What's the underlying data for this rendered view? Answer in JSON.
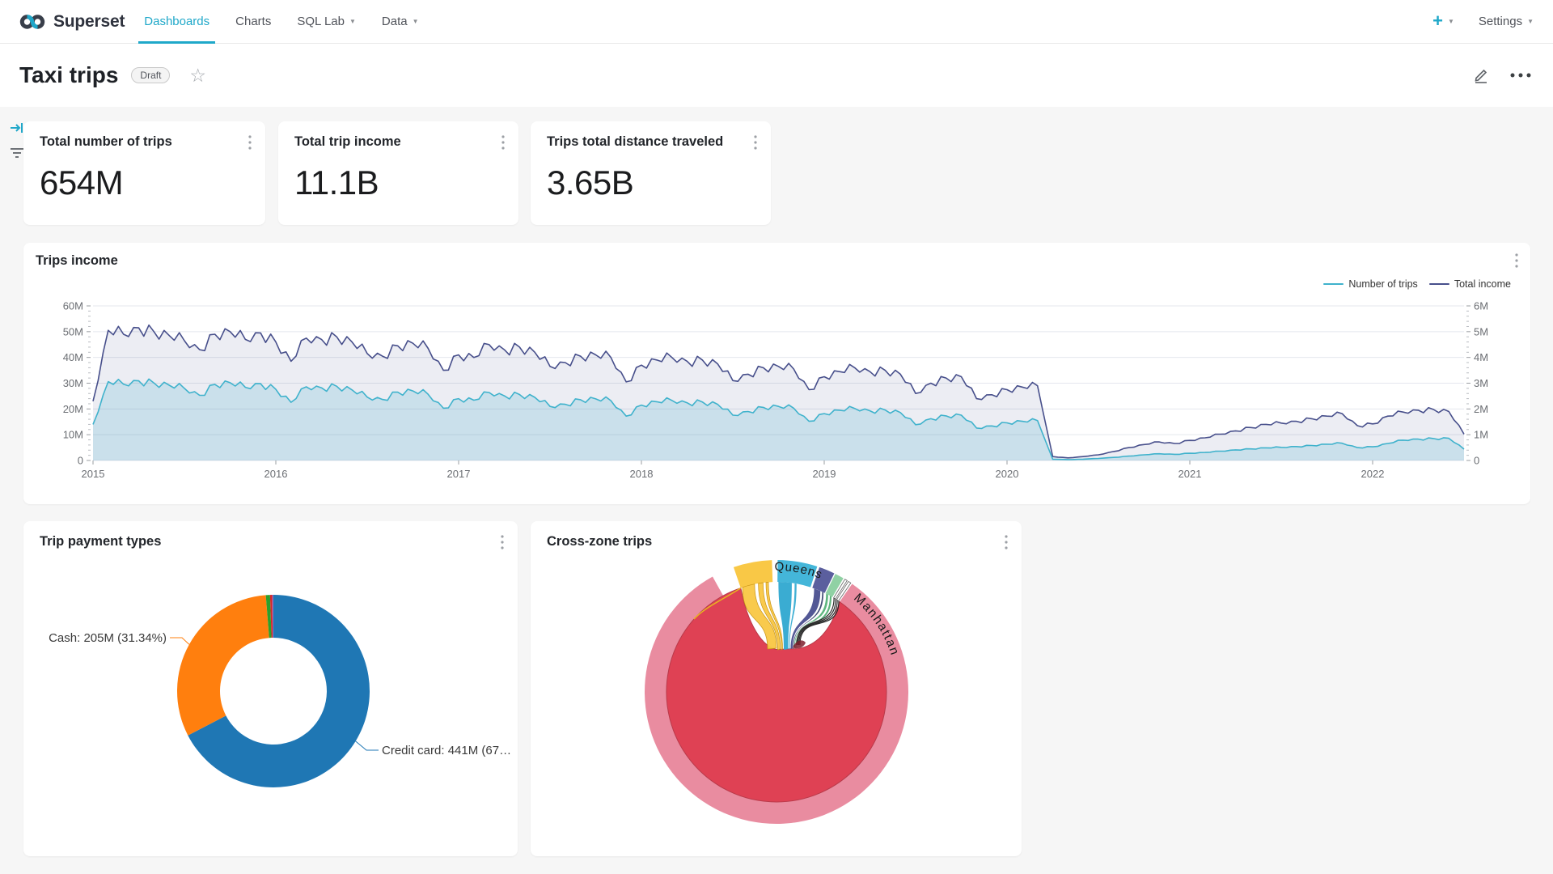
{
  "brand": {
    "name": "Superset",
    "accent": "#20A7C9",
    "logo_dark": "#383E4A"
  },
  "nav": {
    "items": [
      {
        "label": "Dashboards",
        "active": true,
        "caret": false
      },
      {
        "label": "Charts",
        "active": false,
        "caret": false
      },
      {
        "label": "SQL Lab",
        "active": false,
        "caret": true
      },
      {
        "label": "Data",
        "active": false,
        "caret": true
      }
    ],
    "plus_label": "+",
    "settings_label": "Settings"
  },
  "header": {
    "title": "Taxi trips",
    "status_badge": "Draft"
  },
  "kpis": [
    {
      "title": "Total number of trips",
      "value": "654M"
    },
    {
      "title": "Total trip income",
      "value": "11.1B"
    },
    {
      "title": "Trips total distance traveled",
      "value": "3.65B"
    }
  ],
  "trips_income": {
    "title": "Trips income",
    "chart_data": {
      "type": "line",
      "x_start": 2015.0,
      "x_step_months": 1,
      "xticks": [
        "2015",
        "2016",
        "2017",
        "2018",
        "2019",
        "2020",
        "2021",
        "2022"
      ],
      "yticks_left": [
        "0",
        "10M",
        "20M",
        "30M",
        "40M",
        "50M",
        "60M"
      ],
      "yticks_right": [
        "0",
        "1M",
        "2M",
        "3M",
        "4M",
        "5M",
        "6M"
      ],
      "ylim_left": [
        0,
        60
      ],
      "ylim_right": [
        0,
        6
      ],
      "series": [
        {
          "name": "Number of trips",
          "axis": "left",
          "color": "#3FB2CC",
          "fill": "rgba(69,183,209,0.20)",
          "values": [
            14.0,
            30.6,
            29.6,
            30.9,
            30.1,
            29.2,
            28.0,
            25.3,
            29.5,
            30.2,
            28.4,
            29.8,
            27.6,
            22.6,
            28.6,
            28.2,
            28.8,
            27.4,
            24.6,
            23.7,
            26.5,
            27.0,
            25.7,
            20.3,
            24.0,
            23.4,
            26.4,
            25.1,
            25.6,
            24.5,
            21.0,
            21.8,
            23.6,
            23.9,
            23.2,
            17.2,
            21.5,
            22.8,
            23.3,
            22.4,
            22.7,
            21.8,
            17.6,
            19.0,
            20.6,
            21.0,
            20.3,
            15.2,
            18.2,
            19.5,
            20.2,
            19.3,
            19.6,
            18.6,
            13.9,
            16.2,
            17.3,
            17.6,
            12.6,
            13.4,
            14.6,
            15.2,
            15.5,
            0.5,
            0.35,
            0.5,
            0.8,
            1.2,
            1.7,
            2.2,
            2.6,
            2.4,
            2.8,
            3.1,
            3.6,
            4.1,
            4.5,
            4.9,
            5.1,
            5.4,
            5.8,
            6.3,
            6.7,
            5.0,
            5.3,
            6.6,
            7.9,
            8.3,
            8.5,
            8.6,
            4.4
          ]
        },
        {
          "name": "Total income",
          "axis": "right",
          "color": "#474F8B",
          "fill": "rgba(71,79,139,0.10)",
          "values": [
            2.3,
            5.05,
            4.9,
            5.15,
            5.0,
            4.85,
            4.65,
            4.3,
            4.9,
            5.0,
            4.7,
            4.95,
            4.6,
            3.85,
            4.75,
            4.7,
            4.8,
            4.6,
            4.15,
            4.05,
            4.45,
            4.55,
            4.35,
            3.5,
            4.1,
            4.0,
            4.5,
            4.3,
            4.4,
            4.2,
            3.65,
            3.8,
            4.05,
            4.1,
            4.0,
            3.05,
            3.7,
            3.9,
            4.0,
            3.85,
            3.9,
            3.75,
            3.1,
            3.35,
            3.6,
            3.65,
            3.55,
            2.75,
            3.25,
            3.45,
            3.6,
            3.45,
            3.5,
            3.35,
            2.6,
            3.0,
            3.2,
            3.25,
            2.4,
            2.55,
            2.75,
            2.85,
            2.9,
            0.15,
            0.1,
            0.15,
            0.22,
            0.35,
            0.5,
            0.62,
            0.72,
            0.66,
            0.78,
            0.88,
            1.02,
            1.15,
            1.28,
            1.4,
            1.45,
            1.52,
            1.62,
            1.72,
            1.82,
            1.35,
            1.42,
            1.72,
            1.88,
            1.95,
            1.98,
            1.9,
            1.02
          ]
        }
      ]
    }
  },
  "payment": {
    "title": "Trip payment types",
    "chart_data": {
      "type": "pie",
      "slices": [
        {
          "label": "Credit card",
          "pct": 67.4,
          "color": "#1F77B4"
        },
        {
          "label": "Cash",
          "pct": 31.34,
          "color": "#FF7F0E"
        },
        {
          "label": "other-green",
          "pct": 0.7,
          "color": "#2CA02C"
        },
        {
          "label": "other-red",
          "pct": 0.36,
          "color": "#D62728"
        },
        {
          "label": "other-purple",
          "pct": 0.2,
          "color": "#9467BD"
        }
      ],
      "cash_label": "Cash: 205M (31.34%)",
      "credit_label": "Credit card: 441M (67…"
    }
  },
  "crosszone": {
    "title": "Cross-zone trips",
    "chart_data": {
      "type": "chord",
      "self_color": "#DF4154",
      "zones": [
        {
          "label": "Manhattan",
          "color": "#E98CA0",
          "start": 35,
          "end": 331
        },
        {
          "label": "",
          "color": "#F9C846",
          "start": 341,
          "end": 358
        },
        {
          "label": "Queens",
          "color": "#44B6D9",
          "start": 0.5,
          "end": 18
        },
        {
          "label": "",
          "color": "#5B5F9E",
          "start": 19,
          "end": 26
        },
        {
          "label": "",
          "color": "#90D1A4",
          "start": 26.5,
          "end": 30.5
        }
      ]
    }
  }
}
